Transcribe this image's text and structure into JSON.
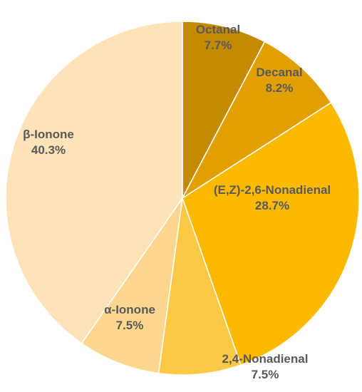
{
  "chart_data": {
    "type": "pie",
    "title": "",
    "start_angle_deg": 0,
    "direction": "clockwise",
    "slices": [
      {
        "label": "Octanal",
        "value": 7.7,
        "value_text": "7.7%",
        "color": "#C58B00"
      },
      {
        "label": "Decanal",
        "value": 8.2,
        "value_text": "8.2%",
        "color": "#E2A000"
      },
      {
        "label": "(E,Z)-2,6-Nonadienal",
        "value": 28.7,
        "value_text": "28.7%",
        "color": "#FBB900"
      },
      {
        "label": "2,4-Nonadienal",
        "value": 7.5,
        "value_text": "7.5%",
        "color": "#FDC845"
      },
      {
        "label": "α-Ionone",
        "value": 7.5,
        "value_text": "7.5%",
        "color": "#FDD78F"
      },
      {
        "label": "β-Ionone",
        "value": 40.3,
        "value_text": "40.3%",
        "color": "#FEE3B9"
      }
    ]
  }
}
